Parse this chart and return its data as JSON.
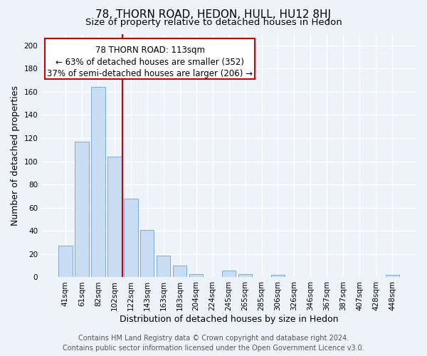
{
  "title": "78, THORN ROAD, HEDON, HULL, HU12 8HJ",
  "subtitle": "Size of property relative to detached houses in Hedon",
  "xlabel": "Distribution of detached houses by size in Hedon",
  "ylabel": "Number of detached properties",
  "bar_labels": [
    "41sqm",
    "61sqm",
    "82sqm",
    "102sqm",
    "122sqm",
    "143sqm",
    "163sqm",
    "183sqm",
    "204sqm",
    "224sqm",
    "245sqm",
    "265sqm",
    "285sqm",
    "306sqm",
    "326sqm",
    "346sqm",
    "367sqm",
    "387sqm",
    "407sqm",
    "428sqm",
    "448sqm"
  ],
  "bar_values": [
    27,
    117,
    164,
    104,
    68,
    41,
    19,
    10,
    3,
    0,
    6,
    3,
    0,
    2,
    0,
    0,
    0,
    0,
    0,
    0,
    2
  ],
  "bar_color": "#c9ddf2",
  "bar_edge_color": "#7aabdc",
  "vline_color": "#cc0000",
  "vline_index": 3.5,
  "annotation_line1": "78 THORN ROAD: 113sqm",
  "annotation_line2": "← 63% of detached houses are smaller (352)",
  "annotation_line3": "37% of semi-detached houses are larger (206) →",
  "ylim": [
    0,
    210
  ],
  "yticks": [
    0,
    20,
    40,
    60,
    80,
    100,
    120,
    140,
    160,
    180,
    200
  ],
  "footer_line1": "Contains HM Land Registry data © Crown copyright and database right 2024.",
  "footer_line2": "Contains public sector information licensed under the Open Government Licence v3.0.",
  "bg_color": "#eef2f9",
  "plot_bg_color": "#eef2f9",
  "grid_color": "#ffffff",
  "title_fontsize": 11,
  "subtitle_fontsize": 9.5,
  "axis_label_fontsize": 9,
  "tick_fontsize": 7.5,
  "footer_fontsize": 7,
  "annotation_fontsize": 8.5
}
